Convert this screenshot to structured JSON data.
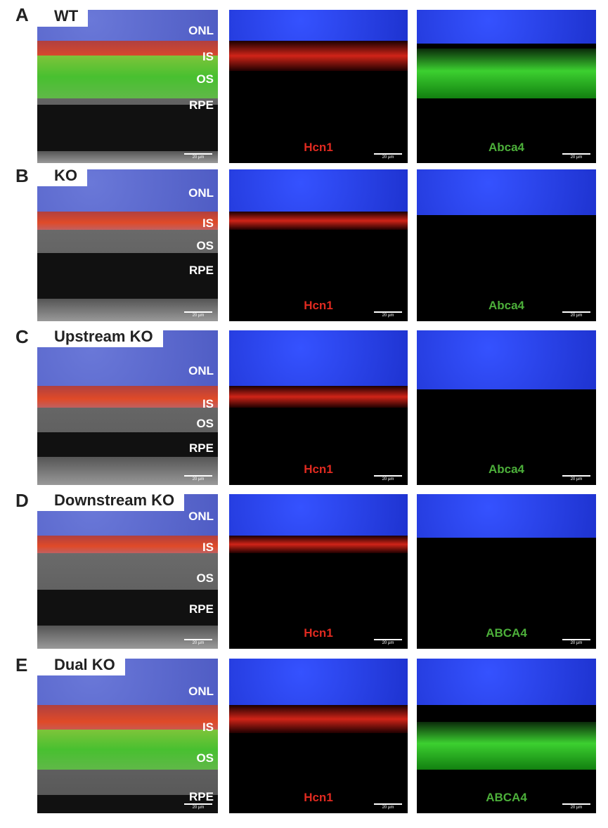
{
  "figure": {
    "scale_bar": "20 µm",
    "layer_labels": [
      "ONL",
      "IS",
      "OS",
      "RPE"
    ],
    "rows": [
      {
        "letter": "A",
        "title": "WT",
        "red_label": "Hcn1",
        "green_label": "Abca4",
        "green_present": true
      },
      {
        "letter": "B",
        "title": "KO",
        "red_label": "Hcn1",
        "green_label": "Abca4",
        "green_present": false
      },
      {
        "letter": "C",
        "title": "Upstream KO",
        "red_label": "Hcn1",
        "green_label": "Abca4",
        "green_present": false
      },
      {
        "letter": "D",
        "title": "Downstream KO",
        "red_label": "Hcn1",
        "green_label": "ABCA4",
        "green_present": false
      },
      {
        "letter": "E",
        "title": "Dual KO",
        "red_label": "Hcn1",
        "green_label": "ABCA4",
        "green_present": true
      }
    ],
    "colors": {
      "nuclei": "#2a3fd6",
      "red": "#e0281e",
      "green": "#4ec23a",
      "label_red": "#e02a20",
      "label_green": "#4caf3a"
    }
  }
}
